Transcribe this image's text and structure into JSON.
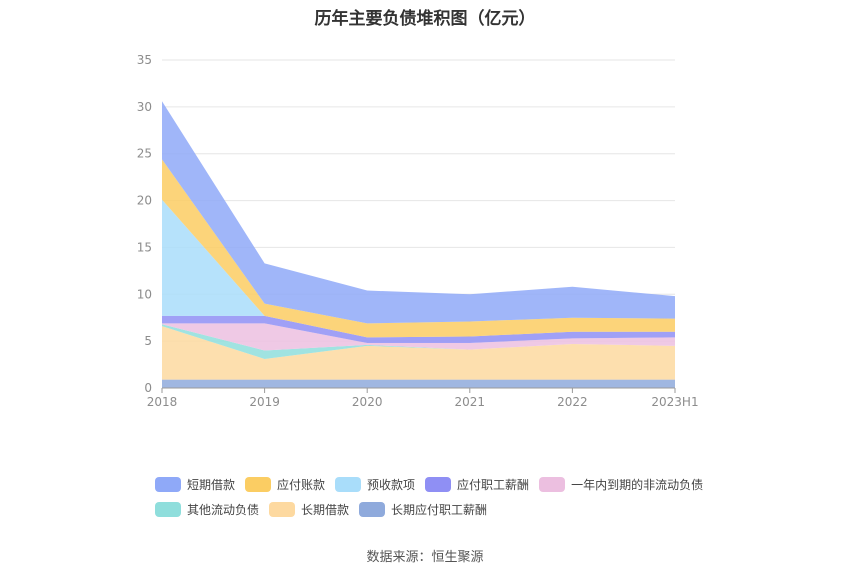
{
  "title": "历年主要负债堆积图（亿元）",
  "source_text": "数据来源：恒生聚源",
  "chart_data": {
    "type": "area",
    "stacked": true,
    "categories": [
      "2018",
      "2019",
      "2020",
      "2021",
      "2022",
      "2023H1"
    ],
    "ylim": [
      0,
      35
    ],
    "yticks": [
      0,
      5,
      10,
      15,
      20,
      25,
      30,
      35
    ],
    "grid": true,
    "legend_position": "bottom",
    "series": [
      {
        "name": "长期应付职工薪酬",
        "color": "#8faadc",
        "values": [
          0.9,
          0.9,
          0.9,
          0.9,
          0.9,
          0.9
        ]
      },
      {
        "name": "长期借款",
        "color": "#fdd9a0",
        "values": [
          5.7,
          2.2,
          3.6,
          3.2,
          3.8,
          3.6
        ]
      },
      {
        "name": "其他流动负债",
        "color": "#8fdedc",
        "values": [
          0.2,
          0.9,
          0.1,
          0.0,
          0.0,
          0.0
        ]
      },
      {
        "name": "一年内到期的非流动负债",
        "color": "#ecbfe0",
        "values": [
          0.1,
          2.9,
          0.2,
          0.7,
          0.6,
          0.9
        ]
      },
      {
        "name": "应付职工薪酬",
        "color": "#8f8ff4",
        "values": [
          0.8,
          0.8,
          0.6,
          0.7,
          0.7,
          0.6
        ]
      },
      {
        "name": "预收款项",
        "color": "#a9ddfa",
        "values": [
          12.4,
          0.0,
          0.0,
          0.0,
          0.0,
          0.0
        ]
      },
      {
        "name": "应付账款",
        "color": "#fbcd63",
        "values": [
          4.3,
          1.3,
          1.5,
          1.6,
          1.5,
          1.4
        ]
      },
      {
        "name": "短期借款",
        "color": "#8fa9f8",
        "values": [
          6.2,
          4.3,
          3.5,
          2.9,
          3.3,
          2.4
        ]
      }
    ]
  },
  "legend_rows": [
    [
      {
        "name": "短期借款",
        "color": "#8fa9f8"
      },
      {
        "name": "应付账款",
        "color": "#fbcd63"
      },
      {
        "name": "预收款项",
        "color": "#a9ddfa"
      },
      {
        "name": "应付职工薪酬",
        "color": "#8f8ff4"
      },
      {
        "name": "一年内到期的非流动负债",
        "color": "#ecbfe0"
      }
    ],
    [
      {
        "name": "其他流动负债",
        "color": "#8fdedc"
      },
      {
        "name": "长期借款",
        "color": "#fdd9a0"
      },
      {
        "name": "长期应付职工薪酬",
        "color": "#8faadc"
      }
    ]
  ]
}
